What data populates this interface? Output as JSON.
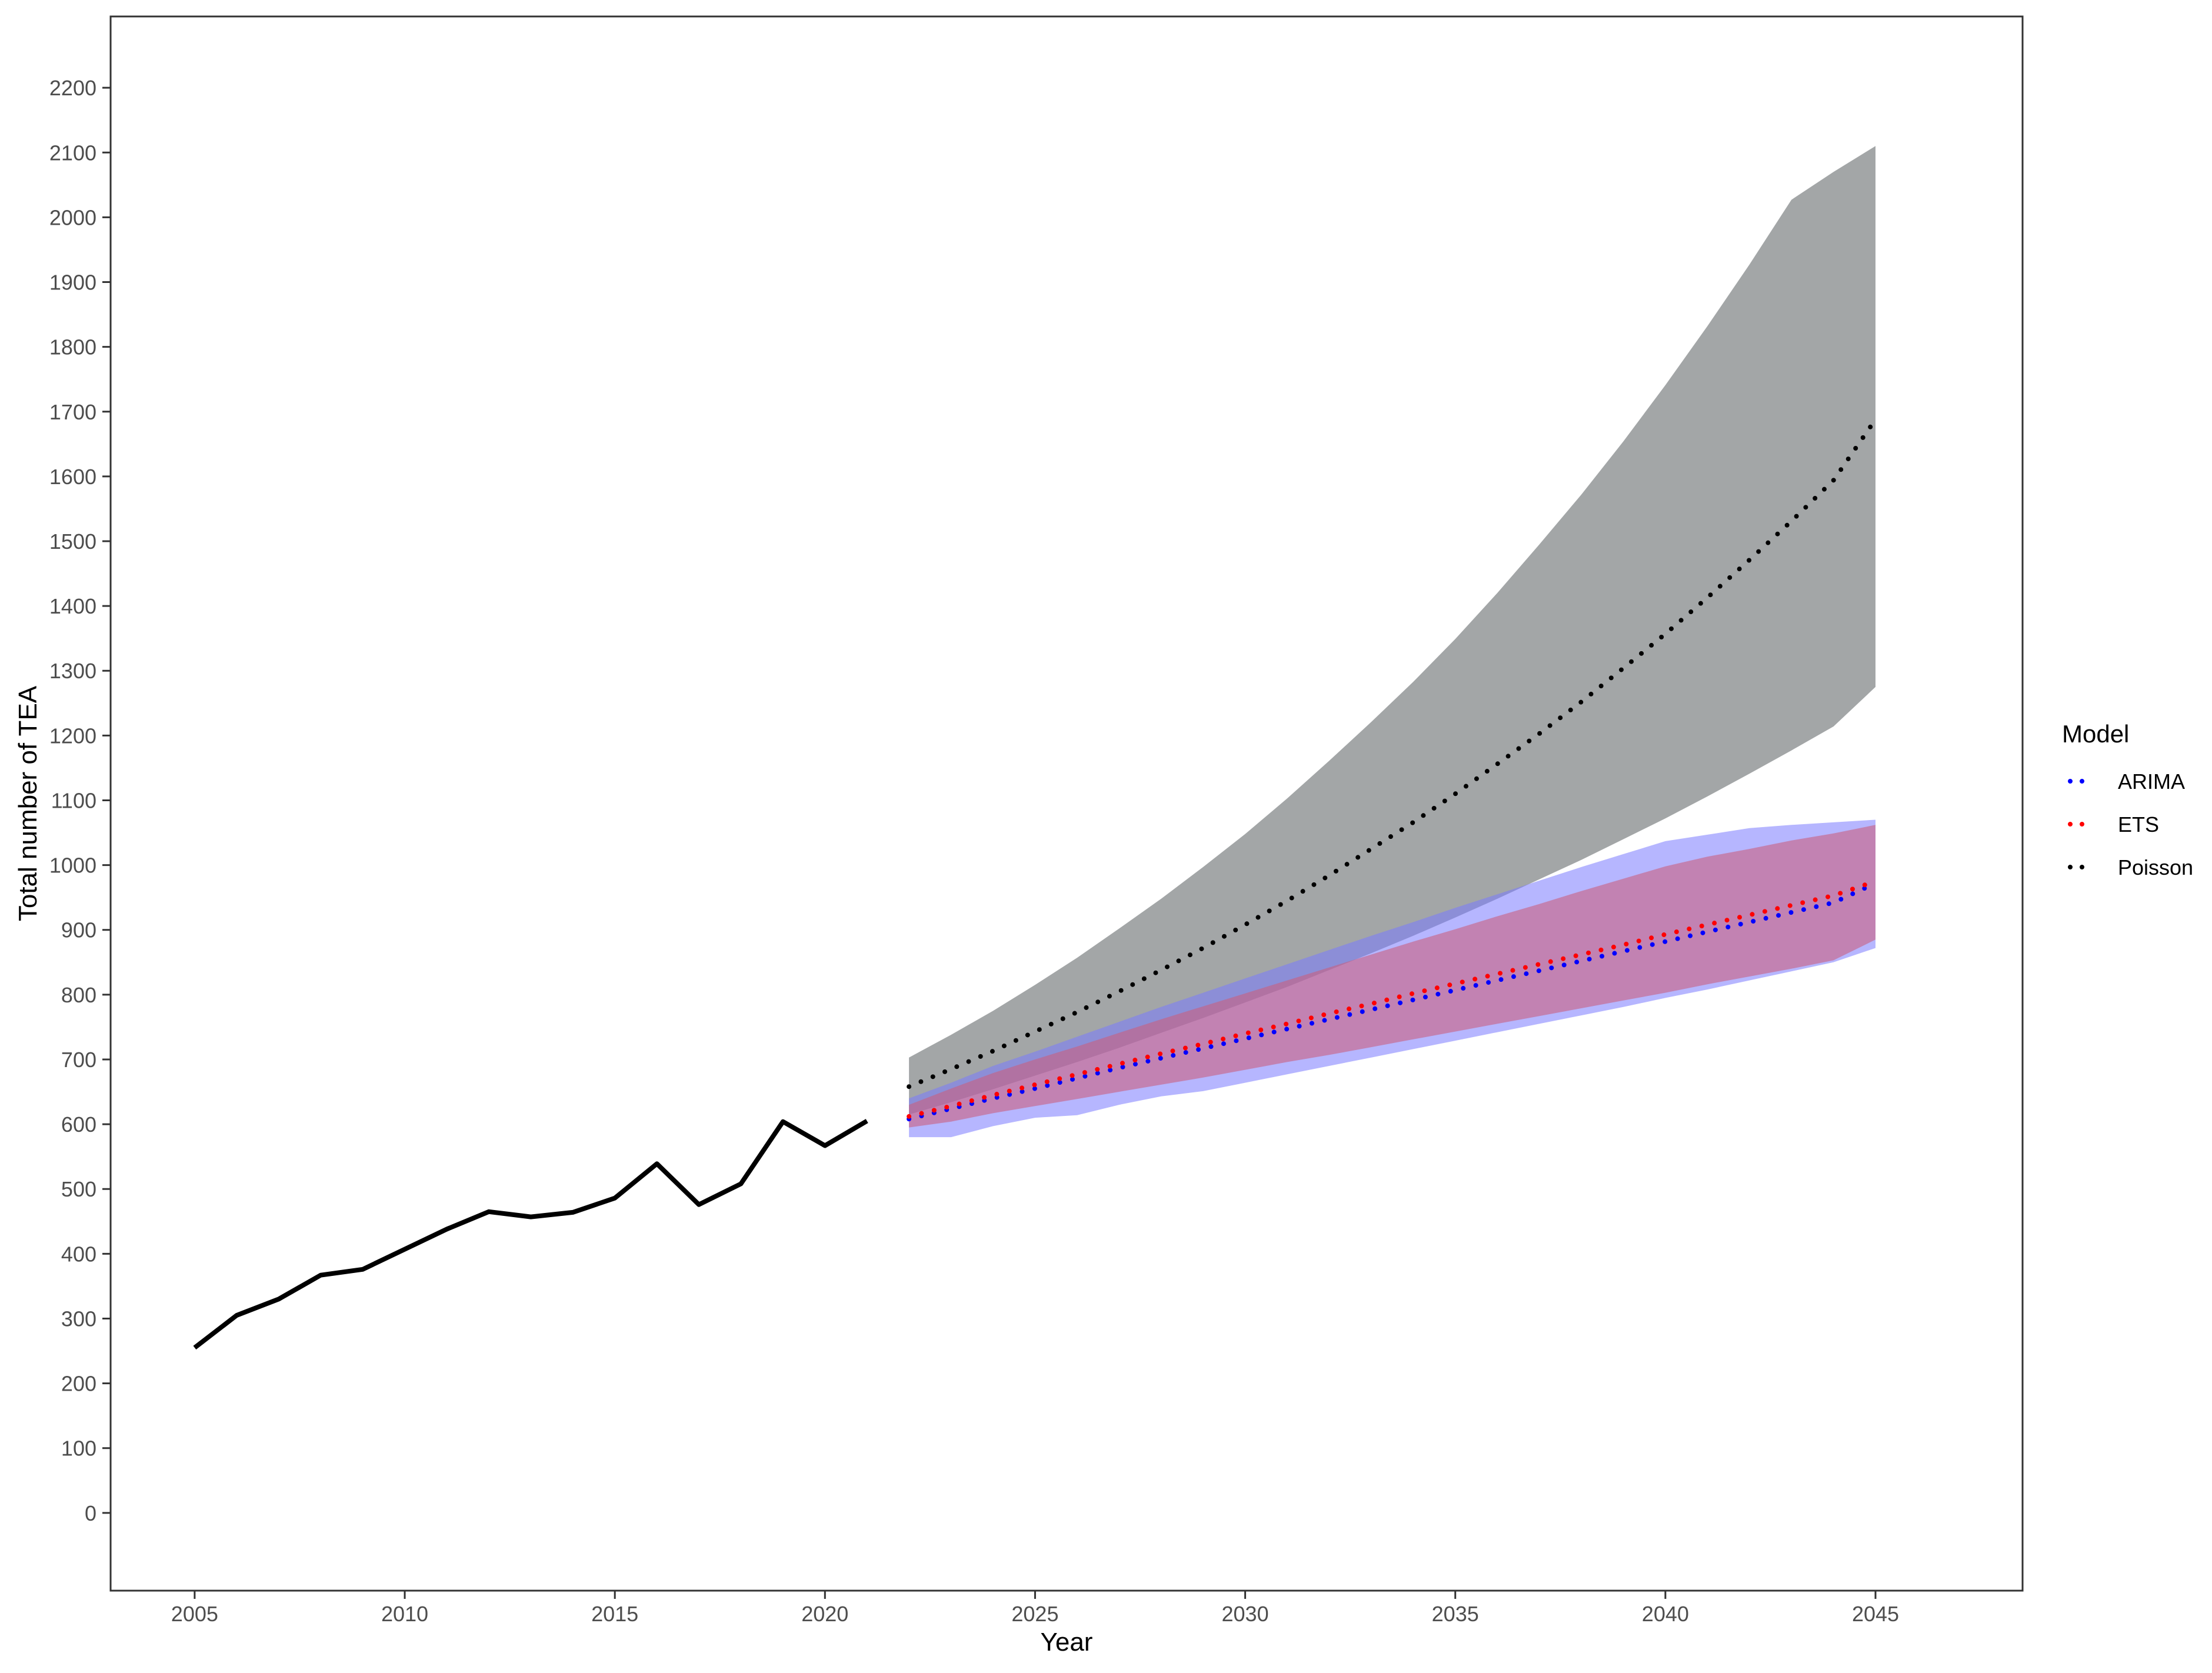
{
  "chart_data": {
    "type": "line",
    "title": "",
    "xlabel": "Year",
    "ylabel": "Total number of TEA",
    "xlim": [
      2003,
      2048.5
    ],
    "ylim": [
      -120,
      2310
    ],
    "x_ticks": [
      2005,
      2010,
      2015,
      2020,
      2025,
      2030,
      2035,
      2040,
      2045
    ],
    "y_ticks": [
      0,
      100,
      200,
      300,
      400,
      500,
      600,
      700,
      800,
      900,
      1000,
      1100,
      1200,
      1300,
      1400,
      1500,
      1600,
      1700,
      1800,
      1900,
      2000,
      2100,
      2200
    ],
    "grid": false,
    "legend": {
      "title": "Model",
      "position": "right",
      "entries": [
        {
          "label": "ARIMA",
          "color": "#0000ff"
        },
        {
          "label": "ETS",
          "color": "#ff0000"
        },
        {
          "label": "Poisson",
          "color": "#000000"
        }
      ]
    },
    "observed": {
      "color": "#000000",
      "x": [
        2005,
        2006,
        2007,
        2008,
        2009,
        2010,
        2011,
        2012,
        2013,
        2014,
        2015,
        2016,
        2017,
        2018,
        2019,
        2020,
        2021
      ],
      "y": [
        255,
        305,
        330,
        367,
        376,
        407,
        438,
        465,
        457,
        464,
        486,
        539,
        476,
        508,
        604,
        567,
        605
      ]
    },
    "forecasts": [
      {
        "name": "Poisson",
        "color": "#000000",
        "band_color": "#7f8385",
        "x": [
          2022,
          2023,
          2024,
          2025,
          2026,
          2027,
          2028,
          2029,
          2030,
          2031,
          2032,
          2033,
          2034,
          2035,
          2036,
          2037,
          2038,
          2039,
          2040,
          2041,
          2042,
          2043,
          2044,
          2045
        ],
        "y": [
          658,
          685,
          713,
          743,
          773,
          805,
          838,
          872,
          908,
          945,
          984,
          1025,
          1066,
          1110,
          1156,
          1203,
          1252,
          1304,
          1357,
          1413,
          1471,
          1531,
          1594,
          1688
        ],
        "lower": [
          615,
          634,
          654,
          675,
          696,
          718,
          741,
          764,
          788,
          812,
          838,
          864,
          891,
          919,
          948,
          978,
          1008,
          1040,
          1072,
          1106,
          1141,
          1177,
          1214,
          1275
        ],
        "upper": [
          703,
          738,
          775,
          815,
          857,
          902,
          948,
          997,
          1048,
          1103,
          1161,
          1221,
          1283,
          1349,
          1420,
          1495,
          1572,
          1654,
          1741,
          1832,
          1927,
          2027,
          2070,
          2110
        ]
      },
      {
        "name": "ARIMA",
        "color": "#0000ff",
        "band_color": "#7a7aff",
        "x": [
          2022,
          2023,
          2024,
          2025,
          2026,
          2027,
          2028,
          2029,
          2030,
          2031,
          2032,
          2033,
          2034,
          2035,
          2036,
          2037,
          2038,
          2039,
          2040,
          2041,
          2042,
          2043,
          2044,
          2045
        ],
        "y": [
          608,
          624,
          640,
          655,
          671,
          687,
          702,
          717,
          732,
          747,
          762,
          777,
          792,
          807,
          822,
          837,
          852,
          867,
          882,
          897,
          912,
          927,
          942,
          972
        ],
        "lower": [
          580,
          580,
          597,
          610,
          614,
          630,
          643,
          651,
          664,
          677,
          690,
          703,
          716,
          729,
          742,
          755,
          768,
          781,
          795,
          808,
          822,
          836,
          850,
          872
        ],
        "upper": [
          640,
          664,
          690,
          712,
          735,
          758,
          781,
          803,
          825,
          847,
          869,
          891,
          912,
          934,
          955,
          976,
          997,
          1017,
          1037,
          1047,
          1057,
          1062,
          1066,
          1070
        ]
      },
      {
        "name": "ETS",
        "color": "#ff0000",
        "band_color": "#c95f7e",
        "x": [
          2022,
          2023,
          2024,
          2025,
          2026,
          2027,
          2028,
          2029,
          2030,
          2031,
          2032,
          2033,
          2034,
          2035,
          2036,
          2037,
          2038,
          2039,
          2040,
          2041,
          2042,
          2043,
          2044,
          2045
        ],
        "y": [
          612,
          628,
          645,
          661,
          677,
          693,
          709,
          724,
          740,
          755,
          771,
          786,
          802,
          817,
          832,
          847,
          862,
          877,
          893,
          908,
          923,
          938,
          953,
          975
        ],
        "lower": [
          595,
          604,
          617,
          628,
          639,
          650,
          661,
          672,
          684,
          696,
          707,
          719,
          731,
          743,
          755,
          767,
          779,
          791,
          803,
          816,
          828,
          840,
          853,
          885
        ],
        "upper": [
          630,
          655,
          679,
          700,
          720,
          741,
          762,
          782,
          802,
          822,
          842,
          862,
          882,
          901,
          921,
          940,
          960,
          979,
          998,
          1013,
          1025,
          1038,
          1049,
          1062
        ]
      }
    ]
  }
}
